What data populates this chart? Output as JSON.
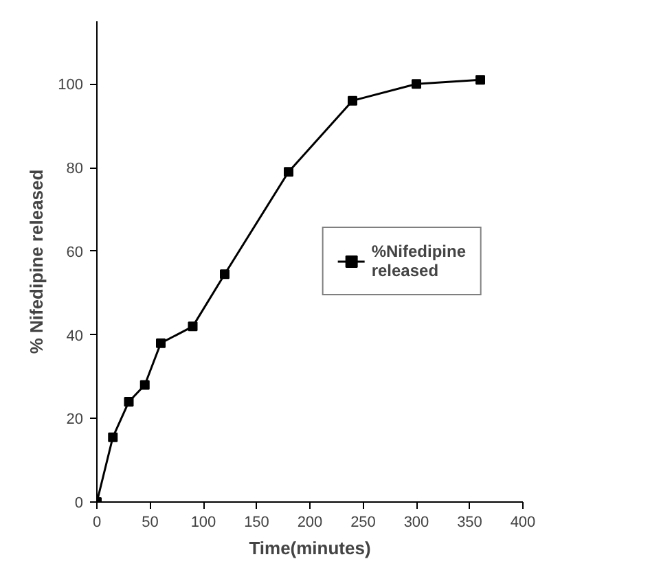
{
  "chart_data": {
    "type": "line",
    "xlabel": "Time(minutes)",
    "ylabel": "% Nifedipine released",
    "x": [
      0,
      15,
      30,
      45,
      60,
      90,
      120,
      180,
      240,
      300,
      360
    ],
    "series": [
      {
        "name": "%Nifedipine\nreleased",
        "color": "#000000",
        "values": [
          0,
          15.5,
          24,
          28,
          38,
          42,
          54.5,
          79,
          96,
          100,
          101
        ]
      }
    ],
    "xlim": [
      0,
      400
    ],
    "xticks": [
      0,
      50,
      100,
      150,
      200,
      250,
      300,
      350,
      400
    ],
    "ylim": [
      0,
      115
    ],
    "yticks": [
      0,
      20,
      40,
      60,
      80,
      100
    ],
    "marker": "square",
    "line_style": "solid",
    "legend": "center right",
    "grid": false
  }
}
